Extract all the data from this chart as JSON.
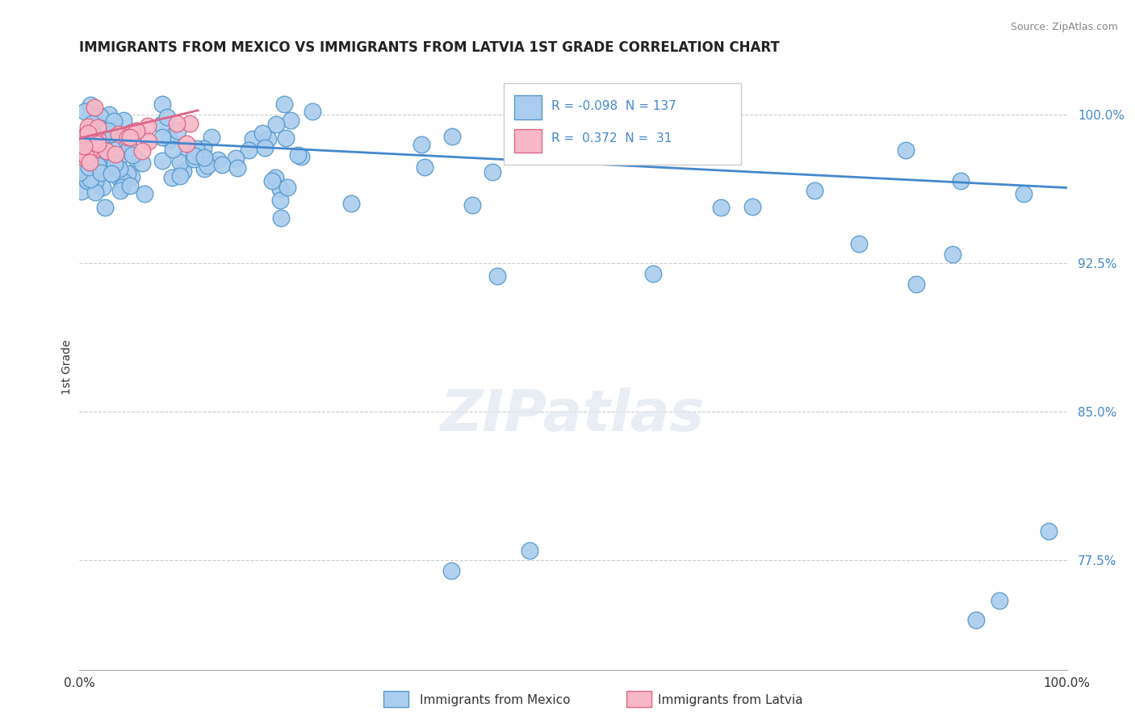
{
  "title": "IMMIGRANTS FROM MEXICO VS IMMIGRANTS FROM LATVIA 1ST GRADE CORRELATION CHART",
  "source": "Source: ZipAtlas.com",
  "ylabel": "1st Grade",
  "legend_entry1_label": "Immigrants from Mexico",
  "legend_entry2_label": "Immigrants from Latvia",
  "legend_R1": "-0.098",
  "legend_N1": "137",
  "legend_R2": "0.372",
  "legend_N2": "31",
  "blue_face": "#aaccee",
  "blue_edge": "#5599cc",
  "pink_face": "#f8b8c8",
  "pink_edge": "#dd6688",
  "blue_line": "#4488cc",
  "pink_line": "#dd6688",
  "ytick_color": "#4488cc",
  "xlim": [
    0.0,
    1.0
  ],
  "ylim": [
    0.72,
    1.025
  ],
  "yticks": [
    1.0,
    0.925,
    0.85,
    0.775
  ],
  "ytick_labels": [
    "100.0%",
    "92.5%",
    "85.0%",
    "77.5%"
  ],
  "blue_trend_x": [
    0.0,
    1.0
  ],
  "blue_trend_y": [
    0.988,
    0.963
  ],
  "pink_trend_x": [
    0.0,
    0.12
  ],
  "pink_trend_y": [
    0.988,
    1.002
  ]
}
